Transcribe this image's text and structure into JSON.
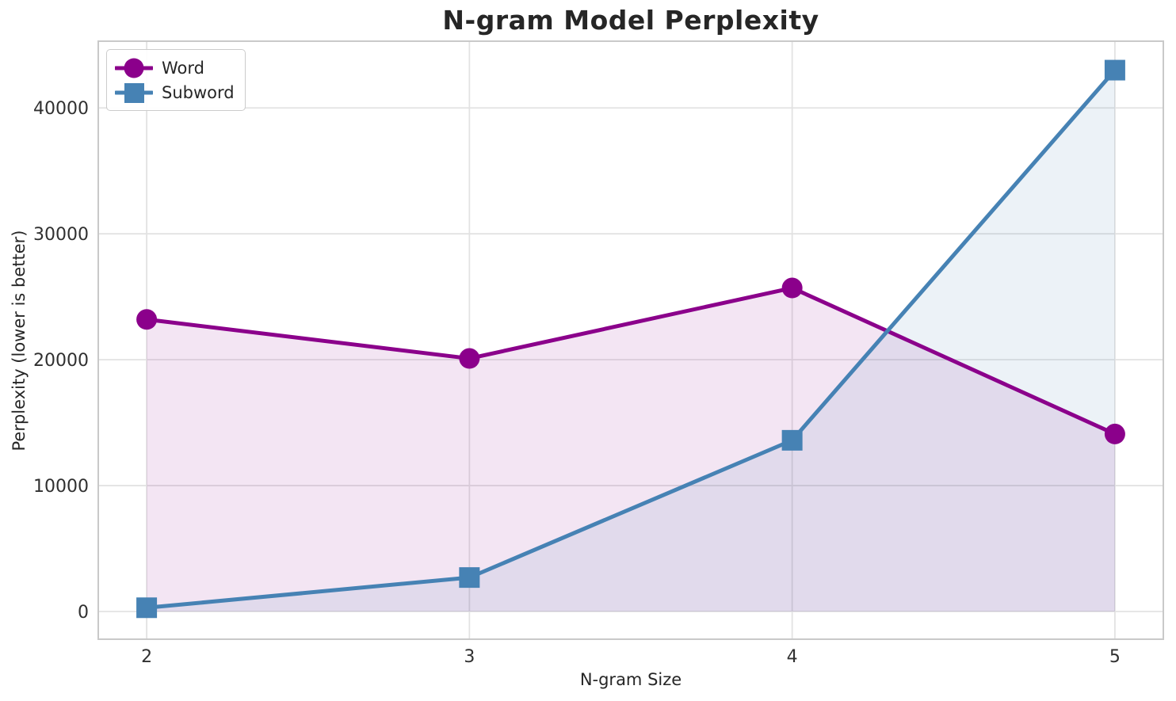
{
  "chart_data": {
    "type": "line",
    "title": "N-gram Model Perplexity",
    "xlabel": "N-gram Size",
    "ylabel": "Perplexity (lower is better)",
    "x": [
      2,
      3,
      4,
      5
    ],
    "series": [
      {
        "name": "Word",
        "values": [
          23200,
          20100,
          25700,
          14100
        ],
        "color": "#8B008B",
        "marker": "circle",
        "fill_to_zero": true
      },
      {
        "name": "Subword",
        "values": [
          300,
          2700,
          13600,
          43000
        ],
        "color": "#4682B4",
        "marker": "square",
        "fill_to_zero": true
      }
    ],
    "xticks": [
      2,
      3,
      4,
      5
    ],
    "yticks": [
      0,
      10000,
      20000,
      30000,
      40000
    ],
    "xlim": [
      1.85,
      5.15
    ],
    "ylim": [
      -2200,
      45300
    ],
    "grid": true,
    "legend_position": "upper left",
    "style": {
      "fill_opacity": 0.1,
      "line_width": 5,
      "marker_size": 13,
      "grid_color": "#e2e2e2",
      "spine_color": "#c9c9c9",
      "text_color": "#262626",
      "background": "#ffffff"
    }
  }
}
